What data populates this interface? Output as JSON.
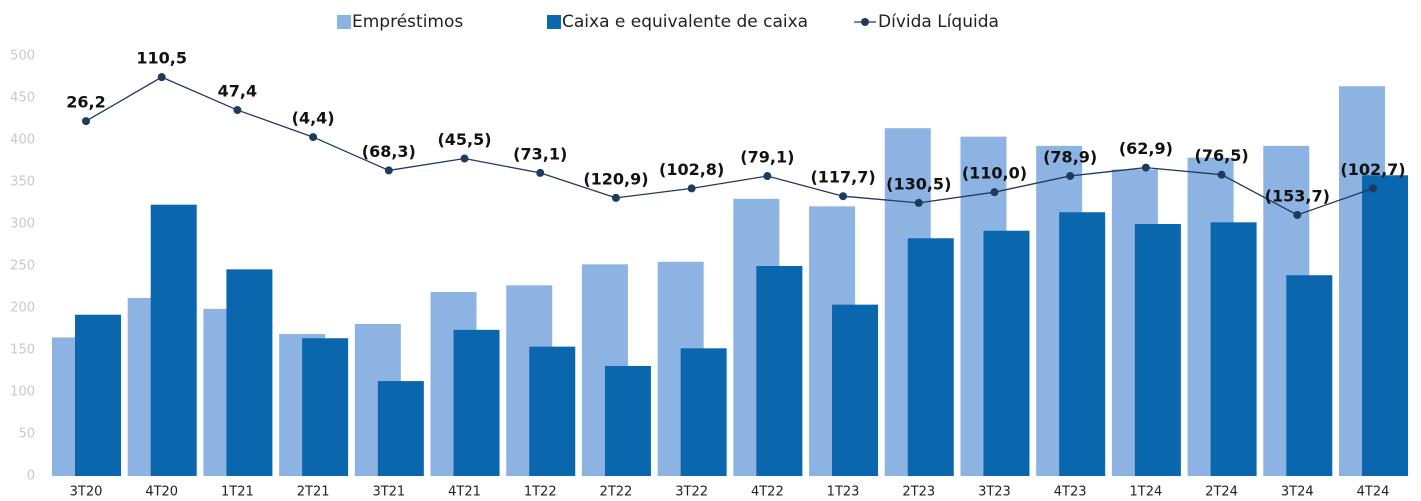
{
  "chart_data": {
    "type": "bar",
    "categories": [
      "3T20",
      "4T20",
      "1T21",
      "2T21",
      "3T21",
      "4T21",
      "1T22",
      "2T22",
      "3T22",
      "4T22",
      "1T23",
      "2T23",
      "3T23",
      "4T23",
      "1T24",
      "2T24",
      "3T24",
      "4T24"
    ],
    "series": [
      {
        "name": "Empréstimos",
        "color": "#8db3e2",
        "values": [
          165,
          212,
          199,
          169,
          181,
          219,
          227,
          252,
          255,
          330,
          321,
          414,
          404,
          393,
          365,
          379,
          393,
          464
        ]
      },
      {
        "name": "Caixa e equivalente de caixa",
        "color": "#0a66ad",
        "values": [
          192,
          323,
          246,
          164,
          113,
          174,
          154,
          131,
          152,
          250,
          204,
          283,
          292,
          314,
          300,
          302,
          239,
          358
        ]
      },
      {
        "name": "Dívida Líquida",
        "type": "line",
        "axis": "y2",
        "color": "#1f3a5f",
        "values": [
          26.2,
          110.5,
          47.4,
          -4.4,
          -68.3,
          -45.5,
          -73.1,
          -120.9,
          -102.8,
          -79.1,
          -117.7,
          -130.5,
          -110.0,
          -78.9,
          -62.9,
          -76.5,
          -153.7,
          -102.7
        ],
        "value_labels": [
          "26,2",
          "110,5",
          "47,4",
          "(4,4)",
          "(68,3)",
          "(45,5)",
          "(73,1)",
          "(120,9)",
          "(102,8)",
          "(79,1)",
          "(117,7)",
          "(130,5)",
          "(110,0)",
          "(78,9)",
          "(62,9)",
          "(76,5)",
          "(153,7)",
          "(102,7)"
        ]
      }
    ],
    "ylim": [
      0,
      500
    ],
    "yticks": [
      0,
      50,
      100,
      150,
      200,
      250,
      300,
      350,
      400,
      450,
      500
    ],
    "y2lim": [
      -654,
      151
    ],
    "grid": false,
    "legend": "top"
  }
}
